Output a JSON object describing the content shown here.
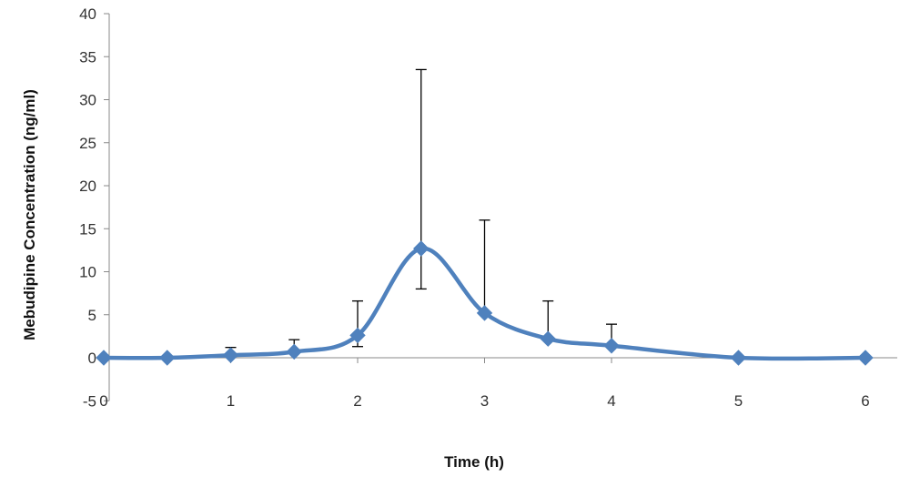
{
  "chart_data": {
    "type": "line",
    "xlabel": "Time (h)",
    "ylabel": "Mebudipine Concentration (ng/ml)",
    "xlim": [
      0,
      6
    ],
    "ylim": [
      -5,
      40
    ],
    "x_ticks": [
      "0",
      "1",
      "2",
      "3",
      "4",
      "5",
      "6"
    ],
    "y_ticks": [
      "-5",
      "0",
      "5",
      "10",
      "15",
      "20",
      "25",
      "30",
      "35",
      "40"
    ],
    "grid": false,
    "legend": "none",
    "smooth": true,
    "marker": "diamond",
    "series_color": "#4f81bd",
    "series": [
      {
        "x": [
          0,
          0.5,
          1,
          1.5,
          2,
          2.5,
          3,
          3.5,
          4,
          5,
          6
        ],
        "y": [
          0,
          0,
          0.3,
          0.7,
          2.6,
          12.7,
          5.2,
          2.2,
          1.4,
          0,
          0
        ],
        "error_low": [
          null,
          null,
          null,
          null,
          1.3,
          8.0,
          null,
          null,
          null,
          null,
          null
        ],
        "error_high": [
          null,
          null,
          1.2,
          2.1,
          6.6,
          33.5,
          16.0,
          6.6,
          3.9,
          null,
          null
        ]
      }
    ]
  }
}
